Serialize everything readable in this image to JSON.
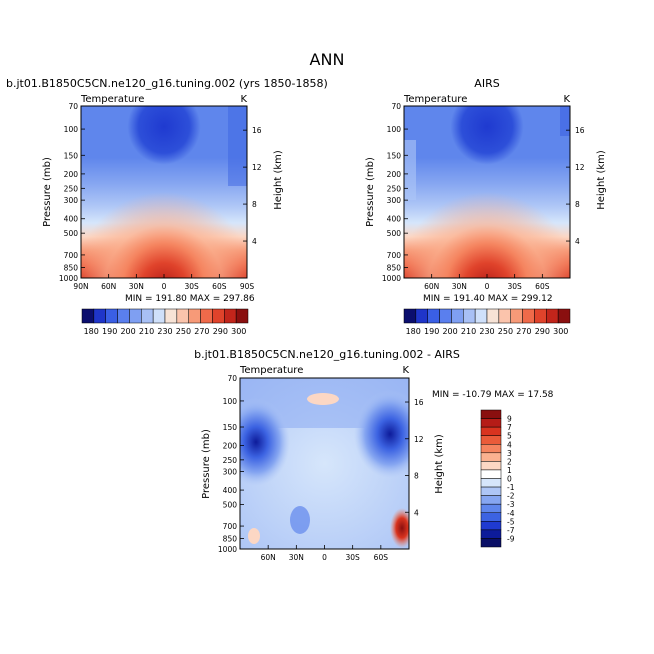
{
  "figure": {
    "title": "ANN"
  },
  "chart_data": [
    {
      "type": "heatmap",
      "title": "b.jt01.B1850C5CN.ne120_g16.tuning.002 (yrs 1850-1858)",
      "subtitle_left": "Temperature",
      "subtitle_right": "K",
      "xlabel": "",
      "ylabel": "Pressure (mb)",
      "y2label": "Height (km)",
      "x_ticks": [
        "90N",
        "60N",
        "30N",
        "0",
        "30S",
        "60S",
        "90S"
      ],
      "y_ticks": [
        "70",
        "100",
        "150",
        "200",
        "250",
        "300",
        "400",
        "500",
        "700",
        "850",
        "1000"
      ],
      "y2_ticks": [
        "16",
        "12",
        "8",
        "4"
      ],
      "stats": "MIN = 191.80   MAX = 297.86",
      "min": 191.8,
      "max": 297.86
    },
    {
      "type": "heatmap",
      "title": "AIRS",
      "subtitle_left": "Temperature",
      "subtitle_right": "K",
      "xlabel": "",
      "ylabel": "Pressure (mb)",
      "y2label": "Height (km)",
      "x_ticks": [
        "60N",
        "30N",
        "0",
        "30S",
        "60S"
      ],
      "y_ticks": [
        "70",
        "100",
        "150",
        "200",
        "250",
        "300",
        "400",
        "500",
        "700",
        "850",
        "1000"
      ],
      "y2_ticks": [
        "16",
        "12",
        "8",
        "4"
      ],
      "stats": "MIN = 191.40   MAX = 299.12",
      "min": 191.4,
      "max": 299.12
    },
    {
      "type": "heatmap",
      "title": "b.jt01.B1850C5CN.ne120_g16.tuning.002 - AIRS",
      "subtitle_left": "Temperature",
      "subtitle_right": "K",
      "xlabel": "",
      "ylabel": "Pressure (mb)",
      "y2label": "Height (km)",
      "x_ticks": [
        "60N",
        "30N",
        "0",
        "30S",
        "60S"
      ],
      "y_ticks": [
        "70",
        "100",
        "150",
        "200",
        "250",
        "300",
        "400",
        "500",
        "700",
        "850",
        "1000"
      ],
      "y2_ticks": [
        "16",
        "12",
        "8",
        "4"
      ],
      "stats": "MIN = -10.79   MAX =  17.58",
      "min": -10.79,
      "max": 17.58
    }
  ],
  "colorbar_abs": {
    "labels": [
      "180",
      "190",
      "200",
      "210",
      "230",
      "250",
      "270",
      "290",
      "300"
    ],
    "colors": [
      "#0b0e6e",
      "#1f35c9",
      "#3a5fe5",
      "#5a7fee",
      "#7f9ff2",
      "#a8c0f5",
      "#cfe0fa",
      "#f7e3d6",
      "#fbc4ac",
      "#f79a78",
      "#ef6a4a",
      "#e0432b",
      "#c2251b",
      "#8a0f0f"
    ]
  },
  "colorbar_diff": {
    "labels": [
      "9",
      "7",
      "5",
      "4",
      "3",
      "2",
      "1",
      "0",
      "-1",
      "-2",
      "-3",
      "-4",
      "-5",
      "-7",
      "-9"
    ],
    "colors": [
      "#8a0f0f",
      "#b51c17",
      "#d9341f",
      "#ea5b39",
      "#f5845f",
      "#fbb190",
      "#fcd7c4",
      "#ffffff",
      "#d6e6fb",
      "#aec6f6",
      "#86a6f1",
      "#5f86ec",
      "#3c63e2",
      "#1f3ad0",
      "#0d1b9a",
      "#0a0f66"
    ]
  }
}
